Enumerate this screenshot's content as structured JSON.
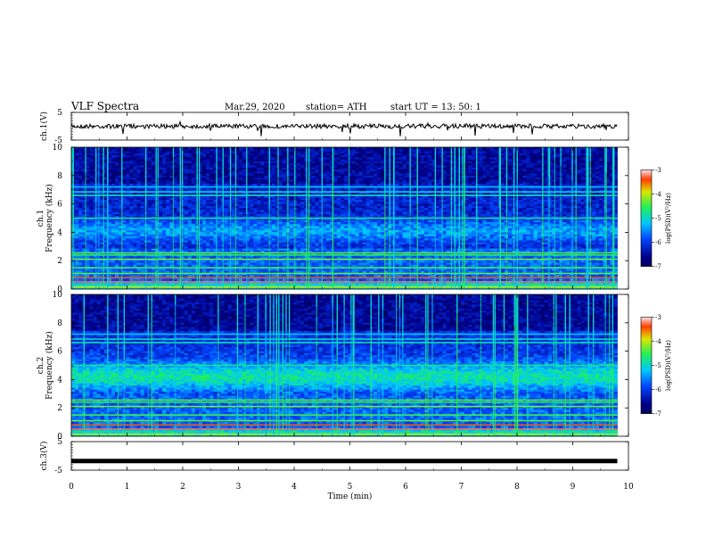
{
  "header": {
    "title": "VLF  Spectra",
    "date": "Mar.29, 2020",
    "station": "station= ATH",
    "start": "start  UT  =    13: 50: 1"
  },
  "chart_data": [
    {
      "type": "line",
      "panel": "ch1-waveform",
      "ylabel": "ch.1(V)",
      "ylim": [
        -5,
        5
      ],
      "yticks": [
        "5",
        "-5"
      ],
      "xlim": [
        0,
        10
      ],
      "data_extent_min": 9.8,
      "baseline": 0,
      "color": "#000000"
    },
    {
      "type": "heatmap",
      "panel": "ch1-spectrogram",
      "ylabel_line1": "ch.1",
      "ylabel_line2": "Frequency  (kHz)",
      "ylim": [
        0,
        10
      ],
      "yticks": [
        "0",
        "2",
        "4",
        "6",
        "8",
        "10"
      ],
      "xlim": [
        0,
        10
      ],
      "data_extent_min": 9.8,
      "colorbar": {
        "label": "log(PSD)(V²/Hz)",
        "range": [
          -7,
          -3
        ],
        "ticks": [
          "-3",
          "-4",
          "-5",
          "-6",
          "-7"
        ]
      }
    },
    {
      "type": "heatmap",
      "panel": "ch2-spectrogram",
      "ylabel_line1": "ch.2",
      "ylabel_line2": "Frequency  (kHz)",
      "ylim": [
        0,
        10
      ],
      "yticks": [
        "0",
        "2",
        "4",
        "6",
        "8",
        "10"
      ],
      "xlim": [
        0,
        10
      ],
      "data_extent_min": 9.8,
      "colorbar": {
        "label": "log(PSD)(V²/Hz)",
        "range": [
          -7,
          -3
        ],
        "ticks": [
          "-3",
          "-4",
          "-5",
          "-6",
          "-7"
        ]
      }
    },
    {
      "type": "line",
      "panel": "ch3-waveform",
      "ylabel": "ch.3(V)",
      "ylim": [
        -5,
        5
      ],
      "yticks": [
        "5",
        "-5"
      ],
      "xlim": [
        0,
        10
      ],
      "data_extent_min": 9.8,
      "baseline": -1.8,
      "color": "#000000"
    }
  ],
  "xaxis": {
    "label": "Time  (min)",
    "ticks": [
      "0",
      "1",
      "2",
      "3",
      "4",
      "5",
      "6",
      "7",
      "8",
      "9",
      "10"
    ]
  }
}
